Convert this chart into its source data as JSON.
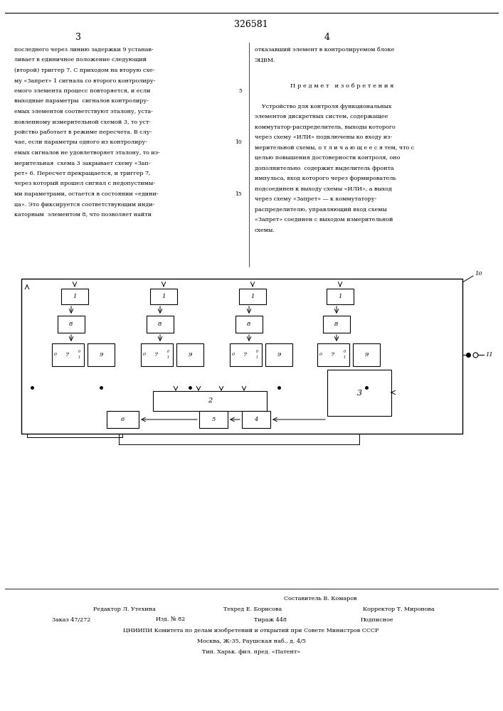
{
  "page_number": "326581",
  "col_left": "3",
  "col_right": "4",
  "text_left": [
    "последнего через линию задержки 9 устанав-",
    "ливает в единичное положение следующий",
    "(второй) триггер 7. С приходом на вторую схе-",
    "му «Запрет» 1 сигнала со второго контролиру-",
    "емого элемента процесс повторяется, и если",
    "выходные параметры  сигналов контролиру-",
    "емых элементов соответствуют эталону, уста-",
    "новленному измерительной схемой 3, то уст-",
    "ройство работает в режиме пересчета. В слу-",
    "чае, если параметры одного из контролиру-",
    "емых сигналов не удовлетворяет эталону, то из-",
    "мерительная  схема 3 закрывает схему «Зап-",
    "рет» 6. Пересчет прекращается, и триггер 7,",
    "через который прошел сигнал с недопустимы-",
    "ми параметрами, остается в состоянии «едини-",
    "ца». Это фиксируется соответствующим инди-",
    "каторным  элементом 8, что позволяет найти"
  ],
  "text_right_1": [
    "отказавший элемент в контролируемом блоке",
    "ЭЦВМ."
  ],
  "text_right_subject": "П р е д м е т   и з о б р е т е н и я",
  "text_right_2": [
    "    Устройство для контроля функциональных",
    "элементов дискретных систем, содержащее",
    "коммутатор-распределитель, выходы которого",
    "через схему «ИЛИ» подключены ко входу из-",
    "мерительной схемы, о т л и ч а ю щ е е с я тем, что с",
    "целью повышения достоверности контроля, оно",
    "дополнительно  содержит выделитель фронта",
    "импульса, вход которого через формирователь",
    "подсоединен к выходу схемы «ИЛИ», а выход",
    "через схему «Запрет» — к коммутатору-",
    "распределителю, управляющий вход схемы",
    "«Запрет» соединен с выходом измерительной",
    "схемы."
  ],
  "footer_compositor": "Составитель В. Комаров",
  "footer_editor": "Редактор Л. Утехина",
  "footer_techred": "Техред Е. Борисова",
  "footer_corrector": "Корректор Т. Миронова",
  "footer_order": "Заказ 47/272",
  "footer_issue": "Изд. № 82",
  "footer_copies": "Тираж 448",
  "footer_signed": "Подписное",
  "footer_org": "ЦНИИПИ Комитета по делам изобретений и открытий при Совете Министров СССР",
  "footer_addr": "Москва, Ж-35, Раушская наб., д. 4/5",
  "footer_printer": "Тип. Харьк. фил. пред. «Патент»"
}
